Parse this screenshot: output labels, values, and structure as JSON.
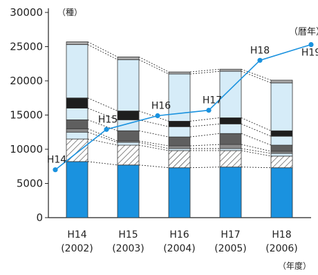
{
  "chart_data": {
    "type": "bar",
    "unit_label": "（種）",
    "x_unit_label": "（年度）",
    "categories": [
      "H14\n(2002)",
      "H15\n(2003)",
      "H16\n(2004)",
      "H17\n(2005)",
      "H18\n(2006)"
    ],
    "category_lines": [
      [
        "H14",
        "(2002)"
      ],
      [
        "H15",
        "(2003)"
      ],
      [
        "H16",
        "(2004)"
      ],
      [
        "H17",
        "(2005)"
      ],
      [
        "H18",
        "(2006)"
      ]
    ],
    "ylim": [
      0,
      30000
    ],
    "yticks": [
      0,
      5000,
      10000,
      15000,
      20000,
      25000,
      30000
    ],
    "grid": false,
    "stack_colors": [
      "#1a92df",
      "#ffffff",
      "#d6ecf8",
      "#8c8c8c",
      "#5f5f5f",
      "#d6ecf8",
      "#1e1e1e",
      "#d6ecf8",
      "#a8a8a8"
    ],
    "stack_patterns": [
      "solid",
      "hatch",
      "solid",
      "solid",
      "solid",
      "solid",
      "solid",
      "solid",
      "solid"
    ],
    "stack_cumulative": [
      [
        8200,
        11500,
        12500,
        13000,
        14300,
        16000,
        17500,
        25300,
        25700
      ],
      [
        7700,
        10600,
        11000,
        11200,
        12700,
        14300,
        15600,
        23100,
        23500
      ],
      [
        7300,
        9800,
        10100,
        10500,
        11800,
        13300,
        14100,
        21000,
        21300
      ],
      [
        7400,
        9800,
        10100,
        10700,
        12300,
        13700,
        14600,
        21400,
        21700
      ],
      [
        7300,
        9000,
        9400,
        9700,
        10600,
        11900,
        12700,
        19700,
        20100
      ]
    ],
    "line_series": {
      "x_positions": [
        0,
        1,
        2,
        3,
        4,
        5
      ],
      "values": [
        7000,
        12900,
        14900,
        15700,
        23000,
        25300
      ],
      "labels": [
        "H14",
        "H15",
        "H16",
        "H17",
        "H18",
        "H19"
      ],
      "color": "#1a92df"
    },
    "line_end_label": "（暦年）"
  }
}
